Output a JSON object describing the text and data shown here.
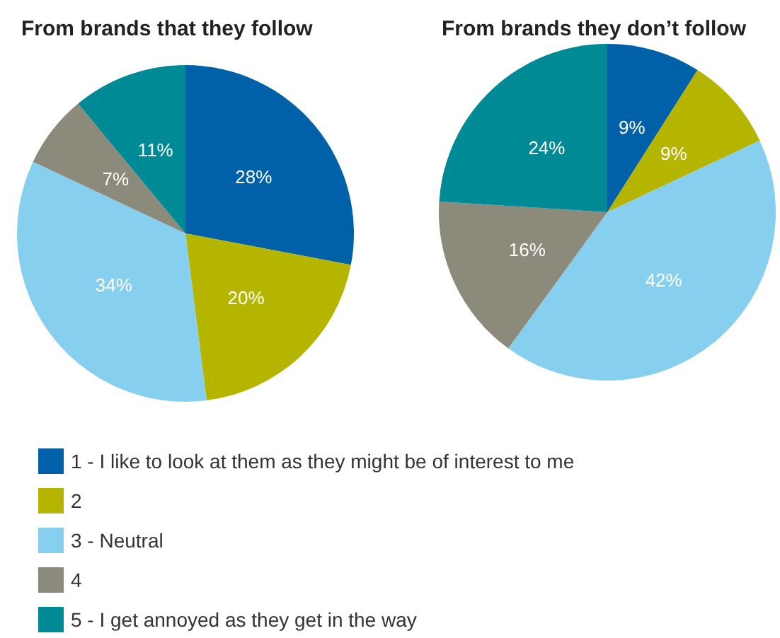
{
  "chart_data": [
    {
      "type": "pie",
      "title": "From brands that they follow",
      "categories": [
        "1 - I like to look at them as they might be of interest to me",
        "2",
        "3 - Neutral",
        "4",
        "5 - I get annoyed as they get in the way"
      ],
      "values": [
        28,
        20,
        34,
        7,
        11
      ],
      "value_labels": [
        "28%",
        "20%",
        "34%",
        "7%",
        "11%"
      ],
      "colors": [
        "#0060a8",
        "#b5b500",
        "#87cfef",
        "#8c8a7a",
        "#008a96"
      ],
      "legend": "bottom"
    },
    {
      "type": "pie",
      "title": "From brands they don’t follow",
      "values": [
        9,
        9,
        42,
        16,
        24
      ],
      "value_labels": [
        "9%",
        "9%",
        "42%",
        "16%",
        "24%"
      ],
      "colors": [
        "#0060a8",
        "#b5b500",
        "#87cfef",
        "#8c8a7a",
        "#008a96"
      ]
    }
  ]
}
